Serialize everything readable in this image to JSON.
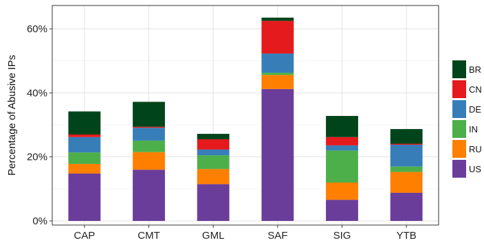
{
  "chart_data": {
    "type": "bar",
    "stacked": true,
    "categories": [
      "CAP",
      "CMT",
      "GML",
      "SAF",
      "SIG",
      "YTB"
    ],
    "ylabel": "Percentage of Abusive IPs",
    "xlabel": "",
    "ylim": [
      0,
      66
    ],
    "yticks": [
      0,
      20,
      40,
      60
    ],
    "ytick_labels": [
      "0%",
      "20%",
      "40%",
      "60%"
    ],
    "grid": true,
    "legend_position": "right",
    "series": [
      {
        "name": "US",
        "color": "#6a3d9a",
        "values": [
          14.8,
          16.0,
          11.5,
          41.2,
          6.6,
          8.8
        ]
      },
      {
        "name": "RU",
        "color": "#ff7f00",
        "values": [
          3.0,
          5.5,
          4.7,
          4.4,
          5.4,
          6.5
        ]
      },
      {
        "name": "IN",
        "color": "#4daf4a",
        "values": [
          3.6,
          3.6,
          4.3,
          0.7,
          10.0,
          1.7
        ]
      },
      {
        "name": "DE",
        "color": "#377eb8",
        "values": [
          4.8,
          4.0,
          1.8,
          6.0,
          1.6,
          6.8
        ]
      },
      {
        "name": "CN",
        "color": "#e41a1c",
        "values": [
          0.8,
          0.3,
          3.2,
          10.2,
          2.6,
          0.3
        ]
      },
      {
        "name": "BR",
        "color": "#00441b",
        "values": [
          7.2,
          7.8,
          1.7,
          1.0,
          6.6,
          4.6
        ]
      }
    ],
    "legend_order": [
      "BR",
      "CN",
      "DE",
      "IN",
      "RU",
      "US"
    ]
  }
}
